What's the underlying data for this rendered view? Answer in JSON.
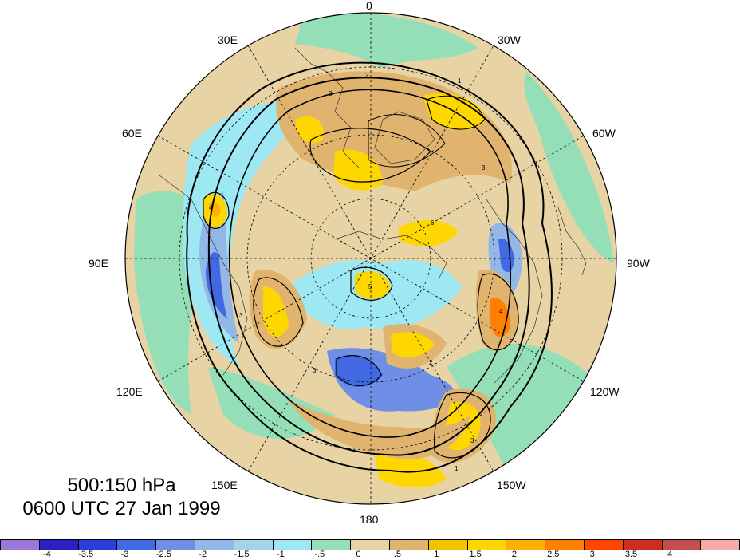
{
  "title": {
    "levels": "500:150 hPa",
    "time": "0600 UTC 27 Jan 1999"
  },
  "longitude_labels": {
    "deg0": "0",
    "deg30w": "30W",
    "deg60w": "60W",
    "deg90w": "90W",
    "deg120w": "120W",
    "deg150w": "150W",
    "deg180": "180",
    "deg150e": "150E",
    "deg120e": "120E",
    "deg90e": "90E",
    "deg60e": "60E",
    "deg30e": "30E"
  },
  "colorbar": {
    "ticks": [
      "-4",
      "-3.5",
      "-3",
      "-2.5",
      "-2",
      "-1.5",
      "-1",
      "-.5",
      "0",
      ".5",
      "1",
      "1.5",
      "2",
      "2.5",
      "3",
      "3.5",
      "4"
    ],
    "colors": [
      "#9b77d9",
      "#2c1fc0",
      "#2a3fd8",
      "#4169e1",
      "#6f8fe6",
      "#93b8e8",
      "#a3d5e6",
      "#9ee8f4",
      "#94dfb8",
      "#e8d3a5",
      "#e0b46e",
      "#f2c300",
      "#ffd700",
      "#ffb000",
      "#ff7f00",
      "#ff4500",
      "#d02b1f",
      "#c44d4d",
      "#f7a9a9"
    ]
  },
  "map": {
    "projection": "north polar stereographic",
    "field_colors": {
      "background": "#e8d3a5",
      "positive_weak": "#e0b46e",
      "positive_mid": "#ffd700",
      "positive_strong": "#ffb000",
      "positive_peak": "#ff7f00",
      "neutral_green": "#94dfb8",
      "negative_weak": "#9ee8f4",
      "negative_mid": "#93b8e8",
      "negative_strong": "#6f8fe6",
      "negative_peak": "#4169e1"
    },
    "contour_labels": [
      "1",
      "2",
      "3",
      "4",
      "5",
      "6"
    ]
  }
}
